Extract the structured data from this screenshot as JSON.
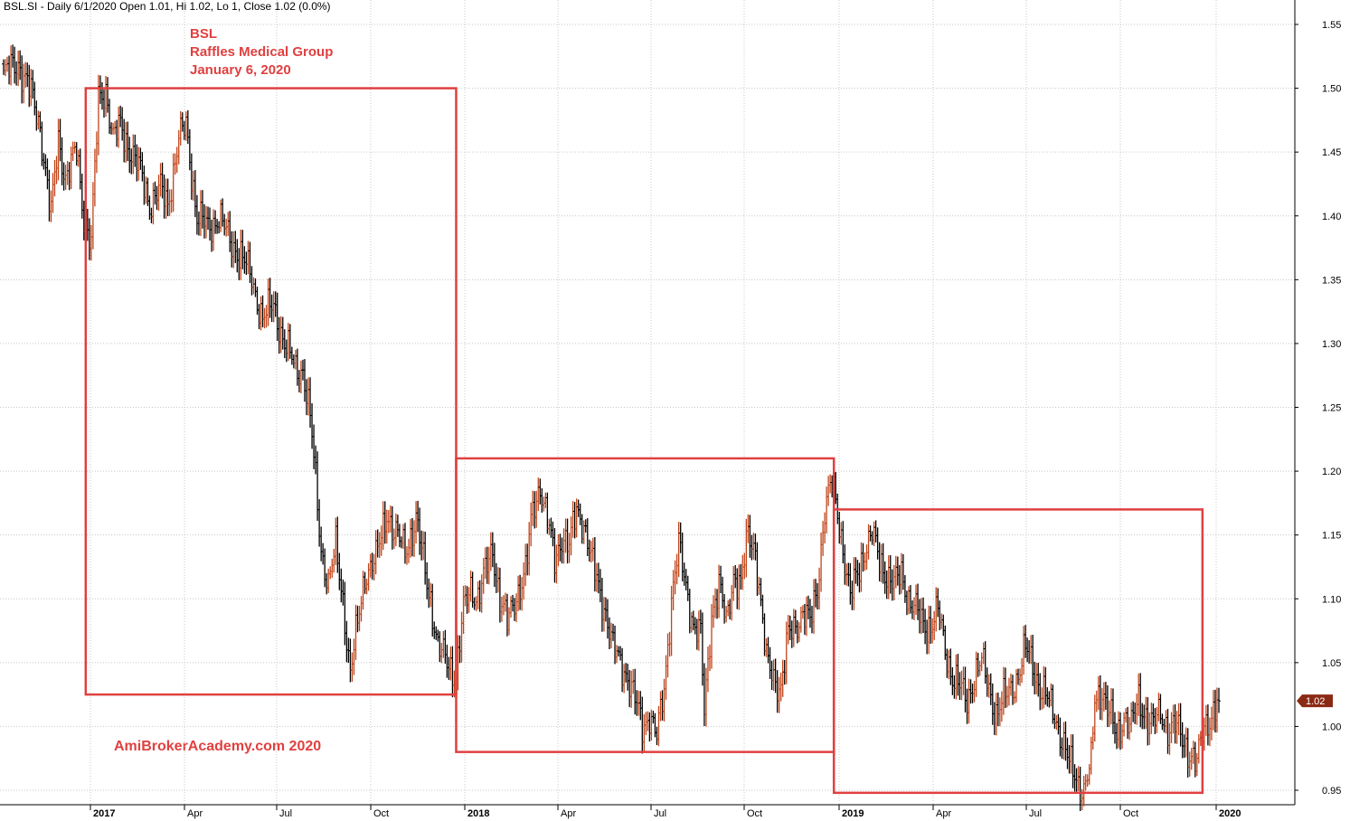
{
  "header": {
    "text": "BSL.SI - Daily 6/1/2020 Open 1.01, Hi 1.02, Lo 1, Close 1.02 (0.0%)"
  },
  "annotation": {
    "ticker": "BSL",
    "company": "Raffles Medical Group",
    "date": "January 6, 2020"
  },
  "watermark": "AmiBrokerAcademy.com  2020",
  "last_price_label": "1.02",
  "colors": {
    "box": "#e04040",
    "up_bar": "#c0451b",
    "down_bar": "#000000",
    "grid": "#c8c8c8",
    "price_tag": "#8b2a14"
  },
  "chart_data": {
    "type": "ohlc",
    "title": "BSL.SI - Daily",
    "ylim": [
      0.935,
      1.575
    ],
    "y_ticks": [
      0.95,
      1.0,
      1.05,
      1.1,
      1.15,
      1.2,
      1.25,
      1.3,
      1.35,
      1.4,
      1.45,
      1.5,
      1.55
    ],
    "y_tick_labels": [
      "0.95",
      "1.00",
      "1.05",
      "1.10",
      "1.15",
      "1.20",
      "1.25",
      "1.30",
      "1.35",
      "1.40",
      "1.45",
      "1.50",
      "1.55"
    ],
    "x_labels": [
      {
        "label": "2017",
        "year": true
      },
      {
        "label": "Apr",
        "year": false
      },
      {
        "label": "Jul",
        "year": false
      },
      {
        "label": "Oct",
        "year": false
      },
      {
        "label": "2018",
        "year": true
      },
      {
        "label": "Apr",
        "year": false
      },
      {
        "label": "Jul",
        "year": false
      },
      {
        "label": "Oct",
        "year": false
      },
      {
        "label": "2019",
        "year": true
      },
      {
        "label": "Apr",
        "year": false
      },
      {
        "label": "Jul",
        "year": false
      },
      {
        "label": "Oct",
        "year": false
      },
      {
        "label": "2020",
        "year": true
      }
    ],
    "price_path": [
      [
        0,
        1.51
      ],
      [
        8,
        1.52
      ],
      [
        14,
        1.5
      ],
      [
        20,
        1.47
      ],
      [
        26,
        1.4
      ],
      [
        30,
        1.46
      ],
      [
        34,
        1.43
      ],
      [
        40,
        1.45
      ],
      [
        44,
        1.4
      ],
      [
        48,
        1.38
      ],
      [
        52,
        1.49
      ],
      [
        56,
        1.5
      ],
      [
        60,
        1.46
      ],
      [
        64,
        1.47
      ],
      [
        70,
        1.45
      ],
      [
        76,
        1.43
      ],
      [
        80,
        1.41
      ],
      [
        86,
        1.42
      ],
      [
        90,
        1.41
      ],
      [
        96,
        1.46
      ],
      [
        100,
        1.47
      ],
      [
        106,
        1.4
      ],
      [
        112,
        1.39
      ],
      [
        118,
        1.4
      ],
      [
        124,
        1.38
      ],
      [
        130,
        1.37
      ],
      [
        136,
        1.35
      ],
      [
        142,
        1.32
      ],
      [
        148,
        1.33
      ],
      [
        154,
        1.3
      ],
      [
        160,
        1.28
      ],
      [
        164,
        1.28
      ],
      [
        168,
        1.24
      ],
      [
        170,
        1.21
      ],
      [
        174,
        1.14
      ],
      [
        178,
        1.11
      ],
      [
        182,
        1.14
      ],
      [
        186,
        1.1
      ],
      [
        190,
        1.04
      ],
      [
        194,
        1.08
      ],
      [
        198,
        1.12
      ],
      [
        204,
        1.13
      ],
      [
        210,
        1.17
      ],
      [
        214,
        1.15
      ],
      [
        220,
        1.14
      ],
      [
        226,
        1.16
      ],
      [
        230,
        1.13
      ],
      [
        234,
        1.1
      ],
      [
        238,
        1.06
      ],
      [
        244,
        1.05
      ],
      [
        248,
        1.04
      ],
      [
        252,
        1.09
      ],
      [
        256,
        1.11
      ],
      [
        260,
        1.1
      ],
      [
        264,
        1.12
      ],
      [
        268,
        1.14
      ],
      [
        272,
        1.1
      ],
      [
        276,
        1.08
      ],
      [
        280,
        1.1
      ],
      [
        286,
        1.12
      ],
      [
        290,
        1.17
      ],
      [
        294,
        1.19
      ],
      [
        298,
        1.16
      ],
      [
        302,
        1.13
      ],
      [
        306,
        1.15
      ],
      [
        310,
        1.14
      ],
      [
        314,
        1.17
      ],
      [
        318,
        1.16
      ],
      [
        322,
        1.13
      ],
      [
        326,
        1.11
      ],
      [
        330,
        1.09
      ],
      [
        334,
        1.06
      ],
      [
        338,
        1.05
      ],
      [
        342,
        1.04
      ],
      [
        346,
        1.02
      ],
      [
        350,
        1.0
      ],
      [
        354,
        1.01
      ],
      [
        358,
        0.99
      ],
      [
        362,
        1.03
      ],
      [
        366,
        1.1
      ],
      [
        370,
        1.14
      ],
      [
        374,
        1.11
      ],
      [
        378,
        1.08
      ],
      [
        382,
        1.07
      ],
      [
        384,
        1.01
      ],
      [
        388,
        1.09
      ],
      [
        392,
        1.11
      ],
      [
        396,
        1.08
      ],
      [
        400,
        1.12
      ],
      [
        404,
        1.11
      ],
      [
        408,
        1.15
      ],
      [
        412,
        1.14
      ],
      [
        416,
        1.08
      ],
      [
        418,
        1.05
      ],
      [
        422,
        1.04
      ],
      [
        426,
        1.03
      ],
      [
        430,
        1.07
      ],
      [
        434,
        1.08
      ],
      [
        438,
        1.09
      ],
      [
        442,
        1.08
      ],
      [
        446,
        1.11
      ],
      [
        450,
        1.17
      ],
      [
        454,
        1.19
      ],
      [
        458,
        1.16
      ],
      [
        460,
        1.14
      ],
      [
        464,
        1.1
      ],
      [
        468,
        1.12
      ],
      [
        472,
        1.14
      ],
      [
        476,
        1.15
      ],
      [
        480,
        1.13
      ],
      [
        484,
        1.12
      ],
      [
        488,
        1.11
      ],
      [
        492,
        1.12
      ],
      [
        496,
        1.1
      ],
      [
        500,
        1.09
      ],
      [
        504,
        1.08
      ],
      [
        508,
        1.08
      ],
      [
        512,
        1.09
      ],
      [
        516,
        1.06
      ],
      [
        520,
        1.04
      ],
      [
        524,
        1.03
      ],
      [
        528,
        1.02
      ],
      [
        532,
        1.04
      ],
      [
        536,
        1.05
      ],
      [
        540,
        1.03
      ],
      [
        544,
        1.01
      ],
      [
        548,
        1.02
      ],
      [
        552,
        1.03
      ],
      [
        556,
        1.04
      ],
      [
        560,
        1.06
      ],
      [
        564,
        1.05
      ],
      [
        568,
        1.03
      ],
      [
        572,
        1.02
      ],
      [
        576,
        1.01
      ],
      [
        580,
        0.99
      ],
      [
        584,
        0.97
      ],
      [
        588,
        0.96
      ],
      [
        592,
        0.95
      ],
      [
        596,
        0.97
      ],
      [
        598,
        1.02
      ],
      [
        602,
        1.03
      ],
      [
        606,
        1.01
      ],
      [
        610,
        0.99
      ],
      [
        614,
        1.01
      ],
      [
        618,
        1.0
      ],
      [
        622,
        1.02
      ],
      [
        626,
        1.01
      ],
      [
        630,
        1.0
      ],
      [
        634,
        1.01
      ],
      [
        638,
        1.0
      ],
      [
        642,
        1.0
      ],
      [
        646,
        0.99
      ],
      [
        650,
        0.98
      ],
      [
        654,
        0.97
      ],
      [
        658,
        1.0
      ],
      [
        662,
        1.01
      ],
      [
        666,
        1.02
      ]
    ],
    "boxes": [
      {
        "from": 45,
        "to": 248,
        "ymin": 1.025,
        "ymax": 1.5
      },
      {
        "from": 248,
        "to": 455,
        "ymin": 0.98,
        "ymax": 1.21
      },
      {
        "from": 455,
        "to": 657,
        "ymin": 0.948,
        "ymax": 1.17
      }
    ]
  }
}
